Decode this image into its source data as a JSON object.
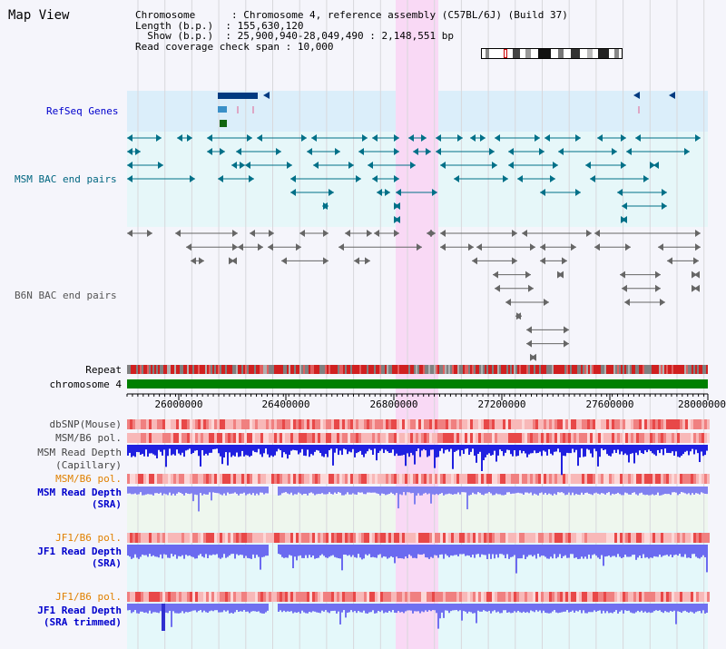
{
  "page_title": "Map View",
  "info": {
    "chromosome_key": "Chromosome      ",
    "chromosome_val": ": Chromosome 4, reference assembly (C57BL/6J) (Build 37)",
    "length_key": "Length (b.p.)  ",
    "length_val": ": 155,630,120",
    "show_key": "  Show (b.p.)  ",
    "show_val": ": 25,900,940-28,049,490 : 2,148,551 bp",
    "coverage_key": "Read coverage check span",
    "coverage_val": " : 10,000"
  },
  "tracks": {
    "refseq": "RefSeq Genes",
    "msm_bac": "MSM BAC end pairs",
    "b6n_bac": "B6N BAC end pairs",
    "repeat": "Repeat",
    "chromosome": "chromosome 4",
    "dbsnp": "dbSNP(Mouse)",
    "msm_b6_pol_1": "MSM/B6 pol.",
    "msm_read_depth_cap_1": "MSM Read Depth",
    "msm_read_depth_cap_2": "(Capillary)",
    "msm_b6_pol_2": "MSM/B6 pol.",
    "msm_read_depth_sra_1": "MSM Read Depth",
    "msm_read_depth_sra_2": "(SRA)",
    "jf1_b6_pol_1": "JF1/B6 pol.",
    "jf1_read_depth_sra_1": "JF1 Read Depth",
    "jf1_read_depth_sra_2": "(SRA)",
    "jf1_b6_pol_2": "JF1/B6 pol.",
    "jf1_read_depth_trim_1": "JF1 Read Depth",
    "jf1_read_depth_trim_2": "(SRA trimmed)"
  },
  "axis": {
    "ticks": [
      "26000000",
      "26400000",
      "26800000",
      "27200000",
      "27600000",
      "28000000"
    ],
    "range_start": 25900940,
    "range_end": 28049490
  },
  "colors": {
    "refseq_bg": "#dbeefa",
    "bac_bg": "#e3f8fa",
    "highlight": "#f9d9f5",
    "chromosome": "#008000",
    "label_blue": "#0000cc",
    "label_teal": "#006680",
    "label_orange": "#e08000"
  }
}
